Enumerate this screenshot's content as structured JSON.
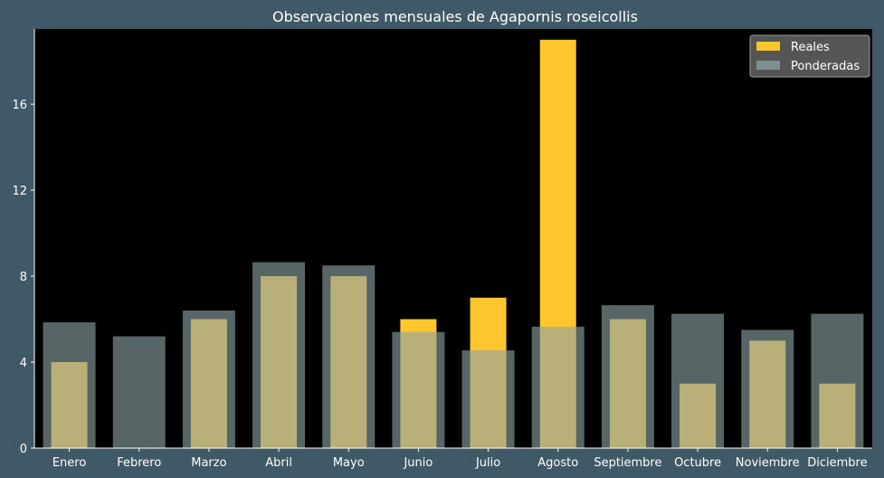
{
  "chart_data": {
    "type": "bar",
    "title": "Observaciones mensuales de Agapornis roseicollis",
    "xlabel": "",
    "ylabel": "",
    "categories": [
      "Enero",
      "Febrero",
      "Marzo",
      "Abril",
      "Mayo",
      "Junio",
      "Julio",
      "Agosto",
      "Septiembre",
      "Octubre",
      "Noviembre",
      "Diciembre"
    ],
    "series": [
      {
        "name": "Reales",
        "color": "#ffc62e",
        "values": [
          4,
          0,
          6,
          8,
          8,
          6,
          7,
          19,
          6,
          3,
          5,
          3
        ]
      },
      {
        "name": "Ponderadas",
        "color": "#8ca3a6",
        "values": [
          5.85,
          5.2,
          6.4,
          8.65,
          8.5,
          5.4,
          4.55,
          5.65,
          6.65,
          6.25,
          5.5,
          6.25
        ]
      }
    ],
    "ylim": [
      0,
      19.5
    ],
    "yticks": [
      0,
      4,
      8,
      12,
      16
    ],
    "grid": false,
    "legend": "top-right",
    "background": "#3f5966",
    "plot_background": "#000000"
  }
}
